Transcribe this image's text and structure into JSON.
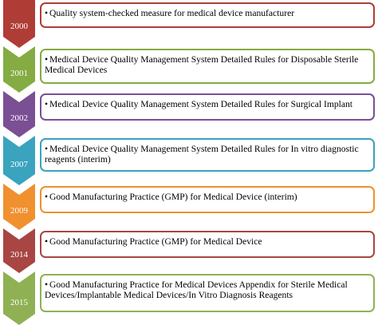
{
  "timeline": [
    {
      "year": "2000",
      "text": "Quality system-checked measure for medical device manufacturer",
      "color": "#b03c36"
    },
    {
      "year": "2001",
      "text": "Medical Device Quality Management System Detailed Rules for Disposable Sterile Medical Devices",
      "color": "#84ac42"
    },
    {
      "year": "2002",
      "text": "Medical Device Quality Management System Detailed Rules for Surgical Implant",
      "color": "#7a4f94"
    },
    {
      "year": "2007",
      "text": "Medical Device Quality Management System Detailed Rules for In vitro diagnostic reagents (interim)",
      "color": "#3aa3bd"
    },
    {
      "year": "2009",
      "text": "Good Manufacturing Practice (GMP) for Medical Device (interim)",
      "color": "#f0902f"
    },
    {
      "year": "2014",
      "text": "Good Manufacturing Practice (GMP) for Medical Device",
      "color": "#a94542"
    },
    {
      "year": "2015",
      "text": "Good Manufacturing Practice for Medical Devices Appendix for Sterile Medical Devices/Implantable Medical Devices/In Vitro Diagnosis Reagents",
      "color": "#8fb154"
    }
  ],
  "bullet_symbol": "•"
}
